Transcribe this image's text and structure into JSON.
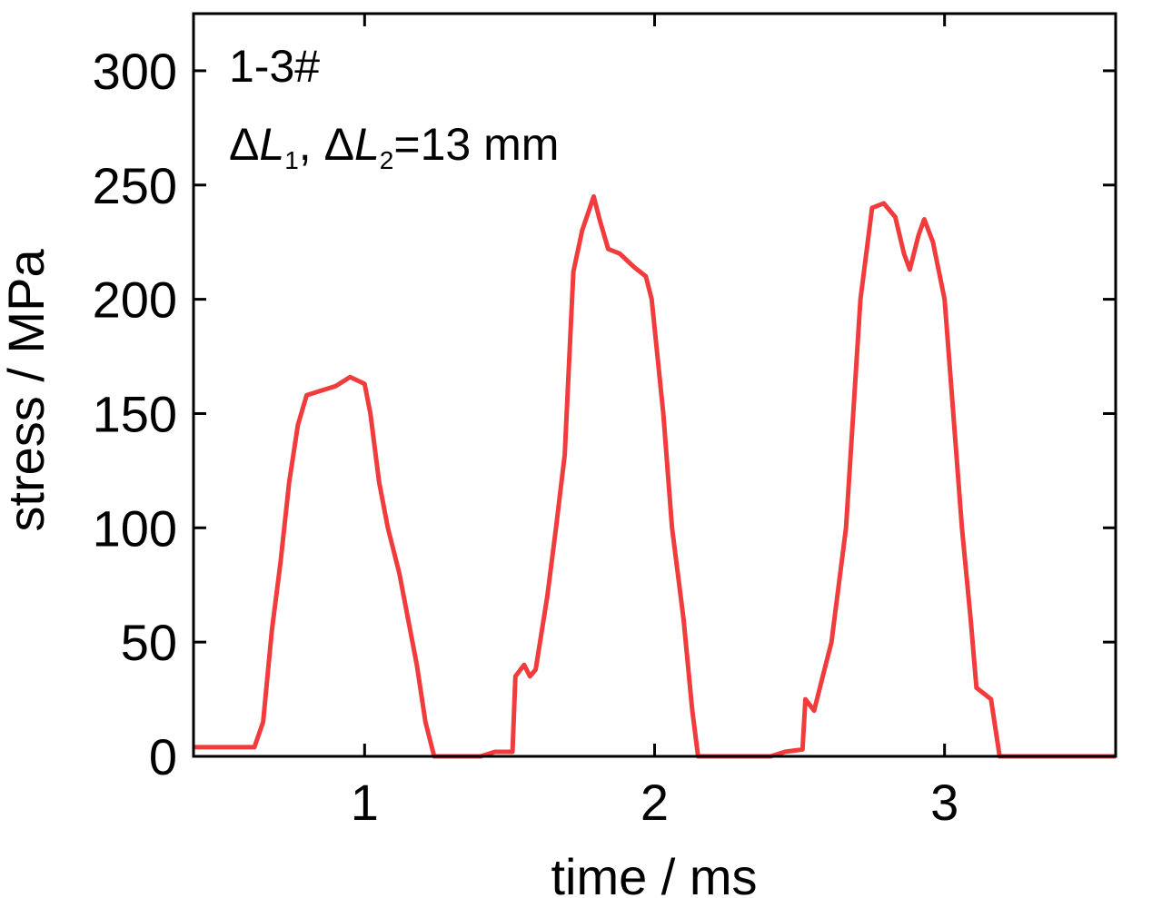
{
  "chart_data": {
    "type": "line",
    "x_label": "time / ms",
    "y_label": "stress / MPa",
    "annotations": [
      "1-3#",
      [
        "Δ",
        "L",
        "1",
        ", Δ",
        "L",
        "2",
        "=13 mm"
      ]
    ],
    "xlim": [
      0.41,
      3.59
    ],
    "xticks": [
      1,
      2,
      3
    ],
    "ylim": [
      0,
      325
    ],
    "yticks": [
      0,
      50,
      100,
      150,
      200,
      250,
      300
    ],
    "series": [
      {
        "color": "#f03c3c",
        "x": [
          0.41,
          0.5,
          0.62,
          0.65,
          0.68,
          0.71,
          0.74,
          0.77,
          0.8,
          0.85,
          0.9,
          0.95,
          1.0,
          1.02,
          1.05,
          1.08,
          1.12,
          1.15,
          1.18,
          1.21,
          1.24,
          1.4,
          1.45,
          1.51,
          1.52,
          1.55,
          1.57,
          1.59,
          1.63,
          1.66,
          1.69,
          1.72,
          1.75,
          1.79,
          1.81,
          1.84,
          1.88,
          1.93,
          1.97,
          1.99,
          2.03,
          2.06,
          2.1,
          2.13,
          2.15,
          2.4,
          2.45,
          2.51,
          2.52,
          2.55,
          2.58,
          2.61,
          2.66,
          2.71,
          2.75,
          2.79,
          2.83,
          2.86,
          2.88,
          2.91,
          2.93,
          2.96,
          3.0,
          3.03,
          3.06,
          3.09,
          3.11,
          3.14,
          3.16,
          3.19,
          3.59
        ],
        "values": [
          4,
          4,
          4,
          15,
          55,
          85,
          120,
          145,
          158,
          160,
          162,
          166,
          163,
          150,
          120,
          100,
          80,
          60,
          40,
          15,
          0,
          0,
          2,
          2,
          35,
          40,
          35,
          38,
          70,
          100,
          132,
          212,
          230,
          245,
          235,
          222,
          220,
          214,
          210,
          200,
          150,
          100,
          60,
          20,
          0,
          0,
          2,
          3,
          25,
          20,
          35,
          50,
          100,
          200,
          240,
          242,
          236,
          220,
          213,
          228,
          235,
          225,
          200,
          150,
          100,
          60,
          30,
          27,
          25,
          0,
          0
        ]
      }
    ]
  }
}
